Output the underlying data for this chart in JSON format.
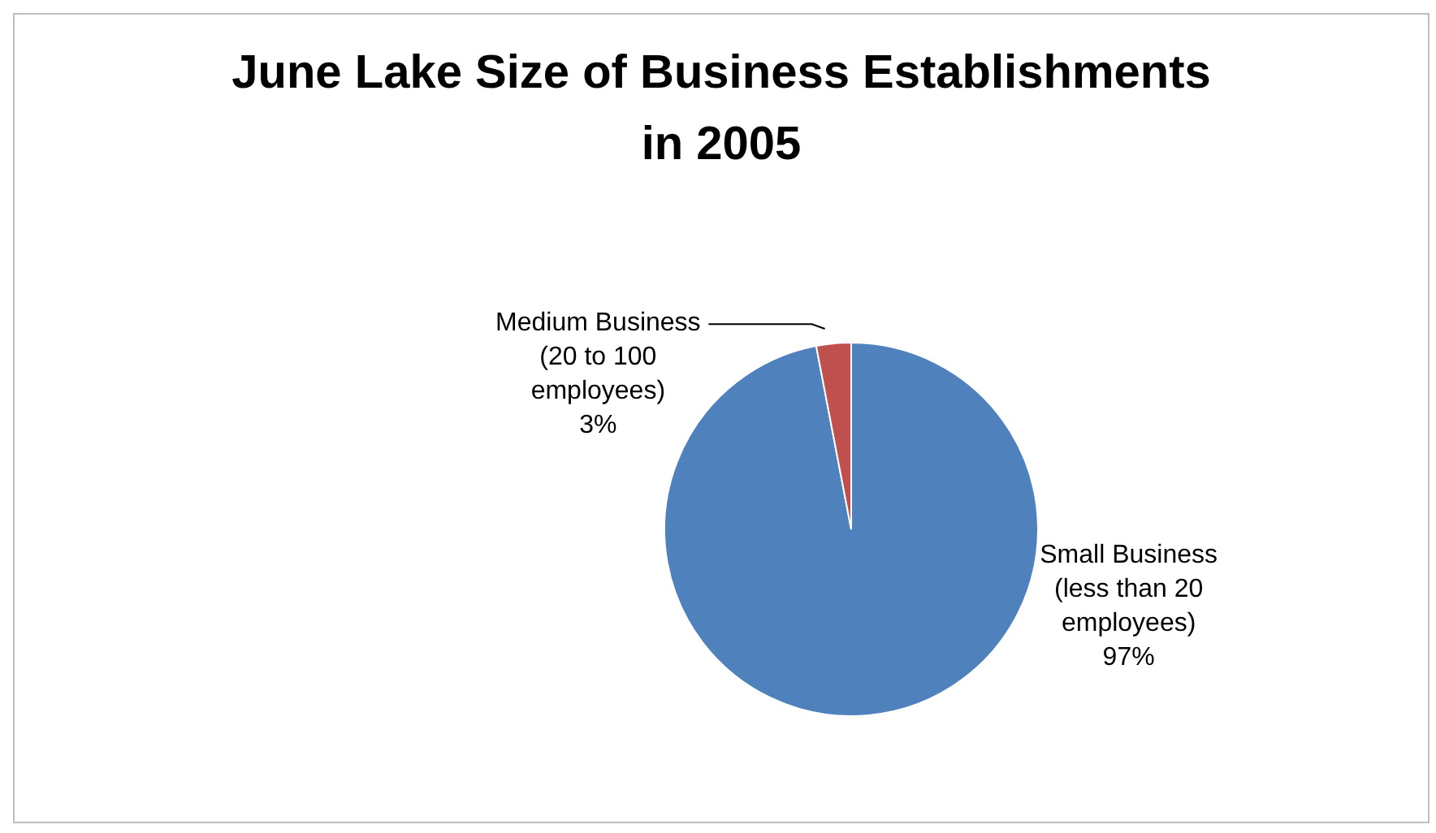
{
  "chart_data": {
    "type": "pie",
    "title": "June Lake Size of Business Establishments in 2005",
    "categories": [
      "Small Business (less than 20 employees)",
      "Medium Business (20 to 100 employees)"
    ],
    "values": [
      97,
      3
    ],
    "colors": [
      "#4f81bd",
      "#c0504d"
    ],
    "value_labels": [
      "97%",
      "3%"
    ]
  }
}
